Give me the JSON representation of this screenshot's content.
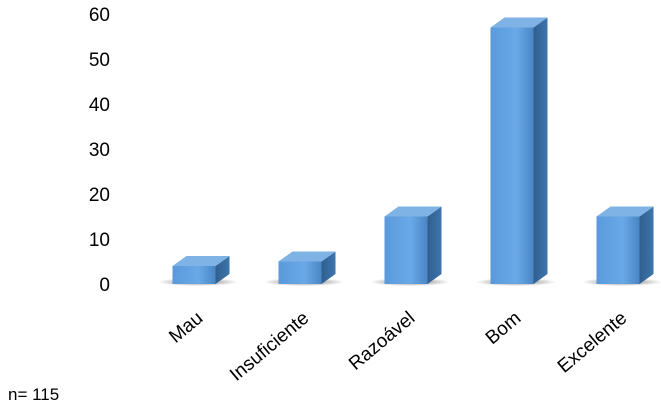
{
  "chart_data": {
    "type": "bar",
    "categories": [
      "Mau",
      "Insuficiente",
      "Razoável",
      "Bom",
      "Excelente"
    ],
    "values": [
      4,
      5,
      15,
      57,
      15
    ],
    "ylim": [
      0,
      60
    ],
    "yticks": [
      0,
      10,
      20,
      30,
      40,
      50,
      60
    ],
    "grid": false,
    "legend": "none",
    "style": "3d-column",
    "colors": {
      "front": "#5b9bd5",
      "side": "#2e5e8f",
      "top": "#7fb2e5"
    }
  },
  "annotation": "n= 115"
}
